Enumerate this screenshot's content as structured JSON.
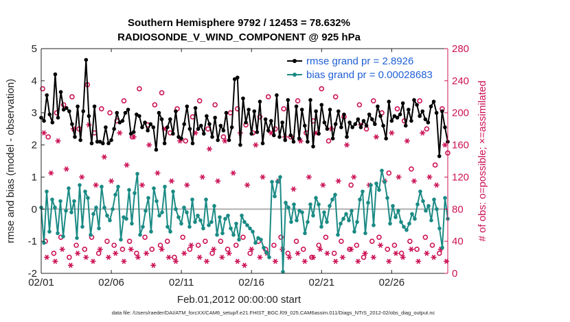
{
  "chart_data": {
    "type": "line",
    "title": "Southern Hemisphere 9792 / 12453 = 78.632%",
    "subtitle": "RADIOSONDE_V_WIND_COMPONENT @ 925 hPa",
    "xlabel": "Feb.01,2012 00:00:00 start",
    "ylabel": "rmse and bias (model - observation)",
    "ylabel_right": "# of obs: o=possible; ×=assimilated",
    "footer": "data file: /Users/raeder/DAI/ATM_forcXX/CAM6_setup/f.e21.FHIST_BGC.f09_025.CAM6assim.011/Diags_NTrS_2012-02/obs_diag_output.nc",
    "x_ticks": [
      "02/01",
      "02/06",
      "02/11",
      "02/16",
      "02/21",
      "02/26"
    ],
    "x_tick_days": [
      0,
      5,
      10,
      15,
      20,
      25
    ],
    "xlim": [
      0,
      29
    ],
    "ylim": [
      -2,
      5
    ],
    "y_ticks": [
      "-2",
      "-1",
      "0",
      "1",
      "2",
      "3",
      "4",
      "5"
    ],
    "ylim_right": [
      0,
      280
    ],
    "y_ticks_right": [
      "0",
      "40",
      "80",
      "120",
      "160",
      "200",
      "240",
      "280"
    ],
    "reference_line_right": 80,
    "legend_position": "top-right",
    "colors": {
      "rmse": "#000000",
      "bias": "#1a8a84",
      "obs": "#cc1155",
      "reference": "#b0b0b0",
      "legend_text": "#1f5fd6"
    },
    "series": [
      {
        "name": "rmse grand pr = 2.8926",
        "axis": "left",
        "values": [
          2.85,
          2.75,
          3.55,
          2.95,
          2.7,
          4.2,
          2.85,
          3.65,
          3.1,
          3.15,
          3.05,
          2.65,
          2.25,
          3.2,
          2.15,
          3.05,
          4.65,
          2.9,
          2.05,
          3.2,
          2.1,
          2.1,
          2.05,
          2.55,
          2.05,
          2.15,
          2.5,
          3.0,
          2.7,
          2.75,
          3.0,
          3.1,
          2.35,
          2.4,
          2.95,
          2.9,
          2.55,
          2.7,
          2.45,
          2.65,
          2.55,
          1.85,
          3.0,
          2.8,
          2.05,
          2.55,
          2.8,
          2.35,
          3.05,
          2.25,
          2.2,
          2.65,
          3.2,
          2.5,
          2.05,
          3.15,
          2.5,
          2.6,
          2.35,
          2.9,
          2.65,
          2.25,
          2.85,
          2.15,
          2.6,
          2.45,
          3.0,
          2.15,
          2.55,
          4.05,
          4.1,
          2.0,
          3.45,
          2.7,
          3.1,
          2.35,
          3.05,
          2.4,
          3.35,
          2.05,
          2.8,
          2.45,
          2.75,
          2.3,
          3.55,
          2.25,
          2.7,
          2.15,
          3.4,
          2.3,
          2.1,
          3.2,
          2.2,
          3.1,
          2.6,
          2.1,
          3.4,
          1.95,
          3.05,
          2.35,
          3.25,
          2.7,
          2.5,
          3.1,
          2.2,
          2.65,
          3.05,
          2.55,
          2.95,
          2.25,
          2.7,
          2.55,
          2.65,
          2.8,
          2.55,
          2.75,
          2.6,
          2.95,
          2.8,
          2.65,
          3.2,
          2.9,
          2.6,
          2.2,
          3.35,
          2.75,
          2.9,
          2.85,
          2.95,
          3.3,
          2.6,
          3.1,
          2.75,
          3.4,
          3.25,
          2.9,
          3.05,
          2.8,
          2.7,
          3.2,
          3.35,
          3.0,
          1.65,
          3.05,
          2.55,
          2.1
        ]
      },
      {
        "name": "bias grand pr = 0.00028683",
        "axis": "left",
        "values": [
          0.05,
          -1.05,
          0.55,
          -0.7,
          0.3,
          0.05,
          -0.75,
          0.25,
          -0.85,
          -0.05,
          0.65,
          -0.1,
          0.25,
          -0.9,
          0.75,
          -0.55,
          0.55,
          0.35,
          -0.8,
          -0.15,
          0.05,
          -0.6,
          0.7,
          0.05,
          -0.2,
          -0.35,
          0.0,
          0.45,
          0.7,
          -0.95,
          -0.25,
          -0.3,
          0.6,
          -0.45,
          0.5,
          1.1,
          -0.8,
          -0.55,
          -0.05,
          0.35,
          -0.7,
          0.65,
          0.25,
          -0.2,
          -0.1,
          0.7,
          -0.55,
          -0.7,
          0.55,
          0.0,
          -0.25,
          -0.45,
          0.05,
          -0.1,
          -0.55,
          0.3,
          -0.4,
          -0.2,
          -0.35,
          -0.6,
          0.3,
          -0.5,
          -0.4,
          0.1,
          -0.8,
          -0.25,
          -0.75,
          -0.3,
          -0.2,
          -0.6,
          -0.8,
          -0.45,
          -0.95,
          -0.2,
          -0.4,
          -0.5,
          -0.6,
          -0.7,
          -1.05,
          -0.9,
          -0.95,
          -1.2,
          -1.35,
          -1.5,
          0.85,
          0.4,
          0.85,
          1.0,
          -1.95,
          0.2,
          0.05,
          -0.4,
          0.15,
          -0.35,
          -0.05,
          -0.1,
          -0.75,
          -0.4,
          0.15,
          -0.2,
          0.35,
          0.15,
          -0.55,
          -0.1,
          -0.4,
          0.1,
          0.3,
          0.45,
          -0.8,
          -0.45,
          -0.3,
          -0.15,
          -0.35,
          -0.05,
          -0.7,
          -0.4,
          0.3,
          0.55,
          -0.75,
          0.2,
          0.75,
          -0.5,
          0.8,
          0.6,
          1.2,
          0.85,
          0.35,
          -0.45,
          0.1,
          -0.25,
          -0.05,
          -0.4,
          -0.55,
          -0.65,
          -0.45,
          -0.15,
          -0.3,
          0.15,
          0.55,
          0.25,
          -0.05,
          0.1,
          -0.35,
          0.3,
          0.0,
          -0.6,
          -1.2,
          0.35,
          -0.3
        ]
      },
      {
        "name": "obs possible",
        "axis": "right",
        "marker": "o",
        "x": [
          0.1,
          0.5,
          1.1,
          1.6,
          2.2,
          2.7,
          3.3,
          3.8,
          4.3,
          4.9,
          5.4,
          5.9,
          6.5,
          7.0,
          7.6,
          8.1,
          8.6,
          9.2,
          9.7,
          10.3,
          10.8,
          11.3,
          11.9,
          12.4,
          13.0,
          13.5,
          14.0,
          14.6,
          15.1,
          15.6,
          16.2,
          16.7,
          17.3,
          17.8,
          18.3,
          18.9,
          19.4,
          20.0,
          20.5,
          21.0,
          21.6,
          22.1,
          22.7,
          23.2,
          23.7,
          24.3,
          24.8,
          25.4,
          25.9,
          26.4,
          27.0,
          27.5,
          28.1,
          28.6,
          29.0
        ],
        "values": [
          230,
          170,
          200,
          210,
          220,
          180,
          235,
          175,
          205,
          200,
          190,
          215,
          170,
          230,
          185,
          210,
          225,
          175,
          205,
          165,
          195,
          215,
          180,
          210,
          170,
          200,
          205,
          185,
          175,
          195,
          220,
          180,
          205,
          170,
          215,
          175,
          190,
          230,
          165,
          220,
          195,
          110,
          210,
          180,
          215,
          200,
          125,
          205,
          190,
          130,
          215,
          180,
          135,
          205,
          150
        ]
      },
      {
        "name": "obs possible low",
        "axis": "right",
        "marker": "o",
        "x": [
          0.3,
          0.9,
          1.4,
          2.0,
          2.5,
          3.1,
          3.6,
          4.1,
          4.7,
          5.2,
          5.8,
          6.3,
          6.8,
          7.4,
          7.9,
          8.5,
          9.0,
          9.5,
          10.1,
          10.6,
          11.2,
          11.7,
          12.2,
          12.8,
          13.3,
          13.9,
          14.4,
          14.9,
          15.5,
          16.0,
          16.6,
          17.1,
          17.6,
          18.2,
          18.7,
          19.3,
          19.8,
          20.3,
          20.9,
          21.4,
          22.0,
          22.5,
          23.0,
          23.6,
          24.1,
          24.7,
          25.2,
          25.7,
          26.3,
          26.8,
          27.4,
          27.9,
          28.4
        ],
        "values": [
          40,
          25,
          45,
          20,
          35,
          30,
          45,
          25,
          40,
          35,
          30,
          40,
          25,
          45,
          30,
          35,
          40,
          20,
          45,
          30,
          35,
          40,
          25,
          40,
          30,
          35,
          45,
          25,
          40,
          30,
          35,
          45,
          25,
          40,
          30,
          20,
          35,
          45,
          25,
          40,
          30,
          35,
          20,
          40,
          45,
          30,
          35,
          25,
          40,
          30,
          45,
          35,
          25
        ]
      },
      {
        "name": "obs assimilated",
        "axis": "right",
        "marker": "*",
        "x": [
          0.2,
          0.7,
          1.2,
          1.8,
          2.3,
          2.9,
          3.4,
          3.9,
          4.5,
          5.0,
          5.6,
          6.1,
          6.6,
          7.2,
          7.7,
          8.3,
          8.8,
          9.3,
          9.9,
          10.4,
          11.0,
          11.5,
          12.0,
          12.6,
          13.1,
          13.7,
          14.2,
          14.7,
          15.3,
          15.8,
          16.4,
          16.9,
          17.4,
          18.0,
          18.5,
          19.1,
          19.6,
          20.1,
          20.7,
          21.2,
          21.8,
          22.3,
          22.8,
          23.4,
          23.9,
          24.5,
          25.0,
          25.5,
          26.1,
          26.6,
          27.2,
          27.7,
          28.2,
          28.8
        ],
        "values": [
          175,
          125,
          165,
          130,
          180,
          120,
          185,
          110,
          145,
          115,
          175,
          135,
          170,
          110,
          160,
          125,
          180,
          115,
          165,
          110,
          175,
          120,
          155,
          115,
          165,
          125,
          175,
          110,
          160,
          120,
          175,
          115,
          170,
          105,
          165,
          120,
          175,
          110,
          180,
          115,
          160,
          120,
          185,
          110,
          170,
          115,
          175,
          120,
          165,
          115,
          175,
          120,
          110,
          160
        ]
      },
      {
        "name": "obs assimilated low",
        "axis": "right",
        "marker": "*",
        "x": [
          0.4,
          1.0,
          1.5,
          2.1,
          2.6,
          3.2,
          3.7,
          4.2,
          4.8,
          5.3,
          5.9,
          6.4,
          6.9,
          7.5,
          8.0,
          8.6,
          9.1,
          9.6,
          10.2,
          10.7,
          11.3,
          11.8,
          12.3,
          12.9,
          13.4,
          14.0,
          14.5,
          15.0,
          15.6,
          16.1,
          16.7,
          17.2,
          17.7,
          18.3,
          18.8,
          19.4,
          19.9,
          20.4,
          21.0,
          21.5,
          22.1,
          22.6,
          23.1,
          23.7,
          24.2,
          24.8,
          25.3,
          25.8,
          26.4,
          26.9,
          27.5,
          28.0,
          28.5,
          28.9
        ],
        "values": [
          20,
          15,
          30,
          10,
          25,
          20,
          15,
          30,
          20,
          25,
          15,
          30,
          20,
          25,
          10,
          30,
          20,
          15,
          25,
          35,
          20,
          15,
          30,
          20,
          25,
          15,
          10,
          30,
          20,
          25,
          15,
          30,
          20,
          25,
          15,
          20,
          30,
          25,
          15,
          20,
          30,
          15,
          25,
          20,
          35,
          15,
          25,
          20,
          30,
          15,
          25,
          20,
          30,
          15
        ]
      }
    ]
  }
}
